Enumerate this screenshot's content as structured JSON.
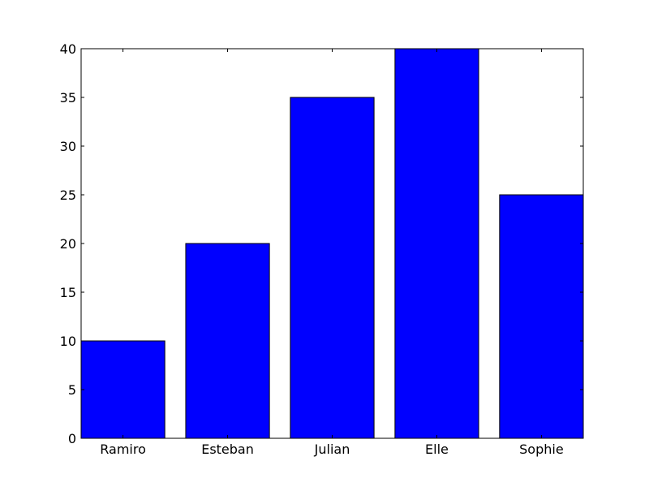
{
  "chart_data": {
    "type": "bar",
    "categories": [
      "Ramiro",
      "Esteban",
      "Julian",
      "Elle",
      "Sophie"
    ],
    "values": [
      10,
      20,
      35,
      40,
      25
    ],
    "title": "",
    "xlabel": "",
    "ylabel": "",
    "ylim": [
      0,
      40
    ],
    "yticks": [
      0,
      5,
      10,
      15,
      20,
      25,
      30,
      35,
      40
    ],
    "grid": false,
    "colors": {
      "bar_fill": "#0000ff",
      "bar_edge": "#000000",
      "axes": "#000000",
      "background": "#ffffff"
    }
  }
}
